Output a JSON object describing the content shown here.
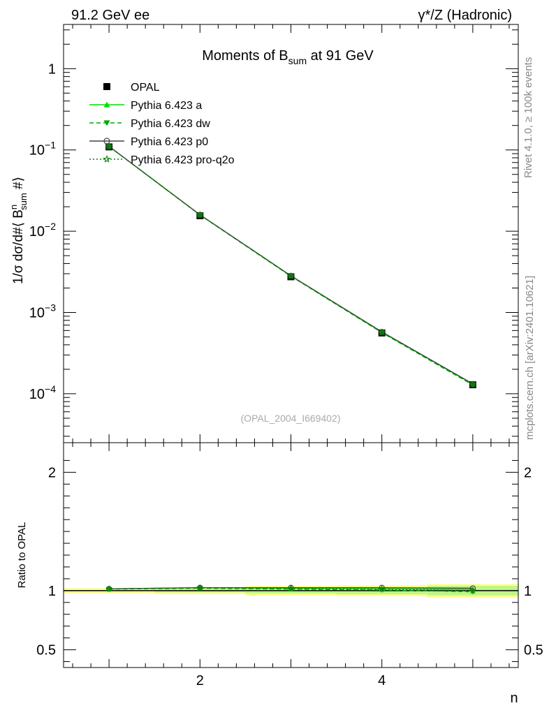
{
  "header": {
    "left_label": "91.2 GeV ee",
    "right_label": "γ*/Z (Hadronic)"
  },
  "side_labels": {
    "rivet": "Rivet 4.1.0, ≥ 100k events",
    "mcplots": "mcplots.cern.ch [arXiv:2401.10621]"
  },
  "chart_data": {
    "type": "line",
    "title": "Moments of B_sum at 91 GeV",
    "title_parts": {
      "pre": "Moments of B",
      "sub": "sum",
      "post": " at 91 GeV"
    },
    "xlabel": "n",
    "ylabel_parts": {
      "a": "1/σ  dσ/d#⟨ B",
      "sup": "n",
      "sub": "sum",
      "b": "  #⟩"
    },
    "ratio_ylabel": "Ratio to OPAL",
    "watermark": "(OPAL_2004_I669402)",
    "xlim": [
      0.5,
      5.5
    ],
    "ylim": [
      2.5e-05,
      3.5
    ],
    "ratio_ylim": [
      0.35,
      2.25
    ],
    "x_ticks": [
      2,
      4
    ],
    "y_ticks": [
      {
        "v": 1,
        "base": "1",
        "exp": ""
      },
      {
        "v": 0.1,
        "base": "10",
        "exp": "−1"
      },
      {
        "v": 0.01,
        "base": "10",
        "exp": "−2"
      },
      {
        "v": 0.001,
        "base": "10",
        "exp": "−3"
      },
      {
        "v": 0.0001,
        "base": "10",
        "exp": "−4"
      }
    ],
    "ratio_y_ticks": [
      {
        "v": 0.5,
        "label": "0.5"
      },
      {
        "v": 1,
        "label": "1"
      },
      {
        "v": 2,
        "label": "2"
      }
    ],
    "data": {
      "name": "OPAL",
      "x": [
        1,
        2,
        3,
        4,
        5
      ],
      "y": [
        0.109,
        0.0155,
        0.00275,
        0.00056,
        0.000129
      ],
      "band_lo": [
        0.995,
        0.985,
        0.975,
        0.97,
        0.96
      ],
      "band_hi": [
        1.005,
        1.015,
        1.025,
        1.03,
        1.04
      ]
    },
    "series": [
      {
        "name": "Pythia 6.423 a",
        "color": "#00dd00",
        "style": "solid",
        "marker": "triangle-up",
        "y": [
          0.1105,
          0.0159,
          0.00282,
          0.000572,
          0.0001315
        ],
        "ratio": [
          1.015,
          1.025,
          1.02,
          1.015,
          1.01
        ]
      },
      {
        "name": "Pythia 6.423 dw",
        "color": "#00aa00",
        "style": "dashed",
        "marker": "triangle-down",
        "y": [
          0.1102,
          0.0158,
          0.00279,
          0.000565,
          0.000128
        ],
        "ratio": [
          1.012,
          1.02,
          1.012,
          1.005,
          0.99
        ]
      },
      {
        "name": "Pythia 6.423 p0",
        "color": "#444444",
        "style": "solid",
        "marker": "circle-open",
        "y": [
          0.1107,
          0.01595,
          0.00283,
          0.000578,
          0.0001325
        ],
        "ratio": [
          1.015,
          1.025,
          1.025,
          1.025,
          1.02
        ]
      },
      {
        "name": "Pythia 6.423 pro-q2o",
        "color": "#008800",
        "style": "dotted",
        "marker": "star-open",
        "y": [
          0.1104,
          0.0159,
          0.00281,
          0.00057,
          0.00013
        ],
        "ratio": [
          1.014,
          1.022,
          1.018,
          1.012,
          1.0
        ]
      }
    ]
  }
}
